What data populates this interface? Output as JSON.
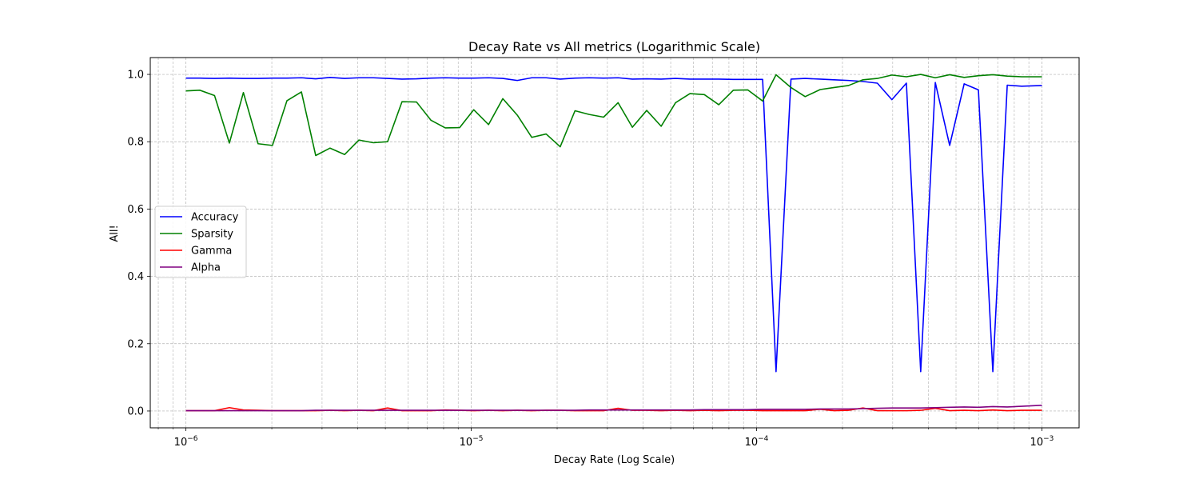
{
  "chart_data": {
    "type": "line",
    "title": "Decay Rate vs All metrics (Logarithmic Scale)",
    "xlabel": "Decay Rate (Log Scale)",
    "ylabel": "All!",
    "xscale": "log",
    "xlim": [
      7.5e-07,
      0.00135
    ],
    "ylim": [
      -0.05,
      1.05
    ],
    "x_ticks": [
      {
        "value": 1e-06,
        "base": "10",
        "exp": "−6"
      },
      {
        "value": 1e-05,
        "base": "10",
        "exp": "−5"
      },
      {
        "value": 0.0001,
        "base": "10",
        "exp": "−4"
      },
      {
        "value": 0.001,
        "base": "10",
        "exp": "−3"
      }
    ],
    "y_ticks": [
      "0.0",
      "0.2",
      "0.4",
      "0.6",
      "0.8",
      "1.0"
    ],
    "y_tick_values": [
      0.0,
      0.2,
      0.4,
      0.6,
      0.8,
      1.0
    ],
    "grid": true,
    "legend_position": "center-left",
    "x": [
      1e-06,
      1.12e-06,
      1.26e-06,
      1.42e-06,
      1.59e-06,
      1.79e-06,
      2.01e-06,
      2.26e-06,
      2.54e-06,
      2.85e-06,
      3.2e-06,
      3.6e-06,
      4.04e-06,
      4.54e-06,
      5.09e-06,
      5.72e-06,
      6.43e-06,
      7.22e-06,
      8.11e-06,
      9.11e-06,
      1.02e-05,
      1.15e-05,
      1.29e-05,
      1.45e-05,
      1.63e-05,
      1.83e-05,
      2.05e-05,
      2.31e-05,
      2.59e-05,
      2.91e-05,
      3.27e-05,
      3.67e-05,
      4.12e-05,
      4.63e-05,
      5.2e-05,
      5.84e-05,
      6.56e-05,
      7.37e-05,
      8.29e-05,
      9.31e-05,
      0.000105,
      0.000117,
      0.000132,
      0.000148,
      0.000167,
      0.000187,
      0.00021,
      0.000236,
      0.000265,
      0.000298,
      0.000335,
      0.000376,
      0.000423,
      0.000475,
      0.000534,
      0.000599,
      0.000673,
      0.000756,
      0.000849,
      0.001
    ],
    "series": [
      {
        "name": "Accuracy",
        "color": "#0000ff",
        "values": [
          0.989,
          0.989,
          0.988,
          0.989,
          0.988,
          0.988,
          0.989,
          0.989,
          0.99,
          0.987,
          0.991,
          0.988,
          0.99,
          0.99,
          0.988,
          0.986,
          0.987,
          0.989,
          0.99,
          0.989,
          0.989,
          0.99,
          0.988,
          0.982,
          0.99,
          0.99,
          0.986,
          0.989,
          0.99,
          0.989,
          0.99,
          0.986,
          0.987,
          0.986,
          0.988,
          0.986,
          0.986,
          0.986,
          0.985,
          0.985,
          0.985,
          0.117,
          0.986,
          0.988,
          0.986,
          0.984,
          0.982,
          0.979,
          0.974,
          0.925,
          0.974,
          0.117,
          0.976,
          0.789,
          0.972,
          0.954,
          0.117,
          0.968,
          0.965,
          0.967
        ]
      },
      {
        "name": "Sparsity",
        "color": "#008000",
        "values": [
          0.951,
          0.953,
          0.937,
          0.796,
          0.946,
          0.794,
          0.789,
          0.922,
          0.948,
          0.759,
          0.781,
          0.762,
          0.805,
          0.797,
          0.8,
          0.919,
          0.918,
          0.864,
          0.841,
          0.842,
          0.895,
          0.851,
          0.928,
          0.879,
          0.813,
          0.823,
          0.785,
          0.892,
          0.881,
          0.873,
          0.916,
          0.843,
          0.893,
          0.846,
          0.916,
          0.943,
          0.94,
          0.91,
          0.953,
          0.954,
          0.921,
          0.999,
          0.961,
          0.934,
          0.955,
          0.961,
          0.967,
          0.984,
          0.988,
          0.998,
          0.993,
          1.0,
          0.99,
          0.999,
          0.991,
          0.996,
          0.999,
          0.995,
          0.993,
          0.993
        ]
      },
      {
        "name": "Gamma",
        "color": "#ff0000",
        "values": [
          0.001,
          0.001,
          0.001,
          0.01,
          0.003,
          0.002,
          0.001,
          0.001,
          0.001,
          0.001,
          0.002,
          0.001,
          0.002,
          0.001,
          0.009,
          0.001,
          0.001,
          0.001,
          0.003,
          0.002,
          0.001,
          0.002,
          0.001,
          0.002,
          0.001,
          0.002,
          0.002,
          0.001,
          0.001,
          0.001,
          0.008,
          0.002,
          0.002,
          0.001,
          0.002,
          0.001,
          0.002,
          0.001,
          0.002,
          0.002,
          0.001,
          0.001,
          0.001,
          0.001,
          0.005,
          0.001,
          0.002,
          0.009,
          0.001,
          0.001,
          0.001,
          0.002,
          0.008,
          0.001,
          0.002,
          0.001,
          0.003,
          0.001,
          0.002,
          0.002
        ]
      },
      {
        "name": "Alpha",
        "color": "#800080",
        "values": [
          0.001,
          0.001,
          0.001,
          0.001,
          0.001,
          0.001,
          0.001,
          0.001,
          0.001,
          0.002,
          0.002,
          0.002,
          0.002,
          0.002,
          0.002,
          0.002,
          0.002,
          0.002,
          0.002,
          0.002,
          0.002,
          0.002,
          0.002,
          0.002,
          0.002,
          0.002,
          0.002,
          0.002,
          0.003,
          0.003,
          0.003,
          0.003,
          0.003,
          0.003,
          0.003,
          0.003,
          0.004,
          0.004,
          0.004,
          0.004,
          0.005,
          0.005,
          0.005,
          0.005,
          0.006,
          0.006,
          0.006,
          0.007,
          0.008,
          0.009,
          0.009,
          0.009,
          0.01,
          0.011,
          0.012,
          0.011,
          0.013,
          0.012,
          0.014,
          0.017
        ]
      }
    ]
  }
}
